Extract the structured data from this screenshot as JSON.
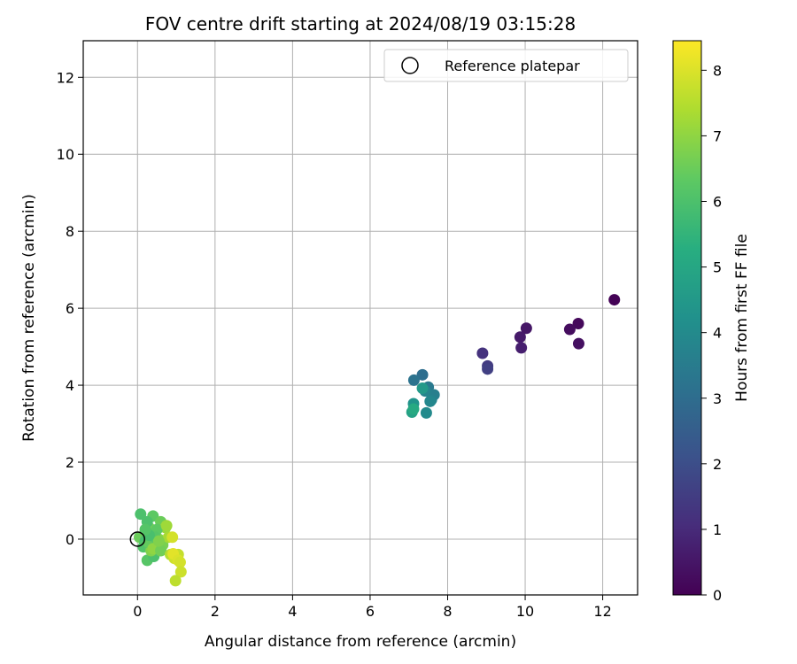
{
  "chart_data": {
    "type": "scatter",
    "title": "FOV centre drift starting at 2024/08/19 03:15:28",
    "xlabel": "Angular distance from reference (arcmin)",
    "ylabel": "Rotation from reference (arcmin)",
    "xlim": [
      -1.4,
      12.9
    ],
    "ylim": [
      -1.45,
      12.95
    ],
    "xticks": [
      0,
      2,
      4,
      6,
      8,
      10,
      12
    ],
    "yticks": [
      0,
      2,
      4,
      6,
      8,
      10,
      12
    ],
    "grid": true,
    "legend": {
      "placement": "top-right",
      "entries": [
        {
          "label": "Reference platepar",
          "marker": "open-circle"
        }
      ]
    },
    "reference_point": {
      "x": 0,
      "y": 0
    },
    "colorbar": {
      "label": "Hours from first FF file",
      "colormap": "viridis",
      "range": [
        0,
        8.45
      ],
      "ticks": [
        0,
        1,
        2,
        3,
        4,
        5,
        6,
        7,
        8
      ]
    },
    "points": [
      {
        "x": 12.3,
        "y": 6.22,
        "t": 0.05
      },
      {
        "x": 11.37,
        "y": 5.6,
        "t": 0.2
      },
      {
        "x": 11.15,
        "y": 5.45,
        "t": 0.28
      },
      {
        "x": 11.38,
        "y": 5.08,
        "t": 0.35
      },
      {
        "x": 10.03,
        "y": 5.48,
        "t": 0.5
      },
      {
        "x": 9.87,
        "y": 5.25,
        "t": 0.6
      },
      {
        "x": 9.9,
        "y": 4.97,
        "t": 0.7
      },
      {
        "x": 8.9,
        "y": 4.83,
        "t": 1.2
      },
      {
        "x": 9.03,
        "y": 4.5,
        "t": 1.45
      },
      {
        "x": 9.03,
        "y": 4.42,
        "t": 1.6
      },
      {
        "x": 7.35,
        "y": 4.27,
        "t": 3.05
      },
      {
        "x": 7.13,
        "y": 4.13,
        "t": 3.2
      },
      {
        "x": 7.5,
        "y": 3.95,
        "t": 3.4
      },
      {
        "x": 7.65,
        "y": 3.75,
        "t": 3.6
      },
      {
        "x": 7.58,
        "y": 3.62,
        "t": 3.7
      },
      {
        "x": 7.42,
        "y": 3.85,
        "t": 3.8
      },
      {
        "x": 7.55,
        "y": 3.58,
        "t": 3.9
      },
      {
        "x": 7.45,
        "y": 3.28,
        "t": 4.0
      },
      {
        "x": 7.12,
        "y": 3.52,
        "t": 4.3
      },
      {
        "x": 7.35,
        "y": 3.92,
        "t": 4.5
      },
      {
        "x": 7.08,
        "y": 3.3,
        "t": 4.8
      },
      {
        "x": 7.12,
        "y": 3.38,
        "t": 5.1
      },
      {
        "x": 0.08,
        "y": 0.65,
        "t": 6.0
      },
      {
        "x": 0.4,
        "y": 0.6,
        "t": 6.3
      },
      {
        "x": 0.05,
        "y": 0.05,
        "t": 6.5
      },
      {
        "x": 0.2,
        "y": -0.05,
        "t": 5.9
      },
      {
        "x": 0.3,
        "y": 0.3,
        "t": 6.6
      },
      {
        "x": 0.45,
        "y": 0.15,
        "t": 6.4
      },
      {
        "x": 0.15,
        "y": -0.2,
        "t": 6.1
      },
      {
        "x": 0.25,
        "y": -0.55,
        "t": 6.2
      },
      {
        "x": 0.42,
        "y": -0.45,
        "t": 6.0
      },
      {
        "x": 0.35,
        "y": -0.3,
        "t": 6.8
      },
      {
        "x": 0.6,
        "y": 0.45,
        "t": 6.5
      },
      {
        "x": 0.55,
        "y": 0.0,
        "t": 6.9
      },
      {
        "x": 0.65,
        "y": -0.15,
        "t": 6.7
      },
      {
        "x": 0.72,
        "y": 0.3,
        "t": 7.1
      },
      {
        "x": 0.5,
        "y": 0.25,
        "t": 6.3
      },
      {
        "x": 0.25,
        "y": 0.45,
        "t": 6.0
      },
      {
        "x": 0.3,
        "y": -0.1,
        "t": 6.4
      },
      {
        "x": 0.4,
        "y": -0.25,
        "t": 7.0
      },
      {
        "x": 0.8,
        "y": 0.05,
        "t": 7.3
      },
      {
        "x": 0.75,
        "y": 0.35,
        "t": 7.2
      },
      {
        "x": 0.6,
        "y": -0.3,
        "t": 6.6
      },
      {
        "x": 0.85,
        "y": -0.4,
        "t": 7.5
      },
      {
        "x": 0.9,
        "y": 0.05,
        "t": 7.9
      },
      {
        "x": 0.95,
        "y": -0.5,
        "t": 7.8
      },
      {
        "x": 1.05,
        "y": -0.4,
        "t": 7.7
      },
      {
        "x": 0.92,
        "y": -0.38,
        "t": 8.1
      },
      {
        "x": 1.05,
        "y": -0.55,
        "t": 8.0
      },
      {
        "x": 1.1,
        "y": -0.6,
        "t": 7.9
      },
      {
        "x": 1.12,
        "y": -0.85,
        "t": 7.8
      },
      {
        "x": 0.98,
        "y": -1.08,
        "t": 7.6
      },
      {
        "x": 0.45,
        "y": 0.05,
        "t": 6.2
      },
      {
        "x": 0.55,
        "y": -0.05,
        "t": 6.8
      },
      {
        "x": 0.3,
        "y": 0.1,
        "t": 5.95
      },
      {
        "x": 0.2,
        "y": 0.25,
        "t": 6.15
      }
    ]
  }
}
